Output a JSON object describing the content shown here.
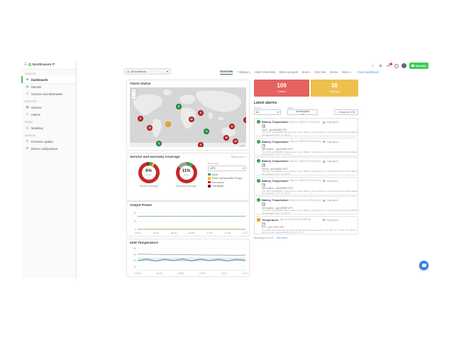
{
  "ui": {
    "menu": "☰",
    "chevron": "▾",
    "chevron_right": "›",
    "search": "⌕",
    "grid": "⊞",
    "download": "↓",
    "check": "✓",
    "warn": "!",
    "location": "◎"
  },
  "header": {
    "icons": [
      {
        "name": "search-icon"
      },
      {
        "name": "apps-grid-icon"
      },
      {
        "name": "notifications-bell-icon",
        "badge": "6"
      },
      {
        "name": "help-icon",
        "glyph": "?"
      },
      {
        "name": "avatar"
      }
    ],
    "brand": {
      "label": "Schneider Electric",
      "short": "Schneider",
      "color": "#3dcd58"
    }
  },
  "sidebar": {
    "logo": "EcoStruxure IT",
    "sections": [
      {
        "label": "Analyze",
        "items": [
          {
            "name": "dashboards",
            "label": "Dashboards",
            "icon": "⊞",
            "active": true
          },
          {
            "name": "reports",
            "label": "Reports",
            "icon": "▤"
          },
          {
            "name": "services-warranties",
            "label": "Services and Warranties",
            "icon": "⛉"
          }
        ]
      },
      {
        "label": "Monitor",
        "items": [
          {
            "name": "devices",
            "label": "Devices",
            "icon": "▣"
          },
          {
            "name": "alarms",
            "label": "Alarms",
            "icon": "⚠"
          }
        ]
      },
      {
        "label": "Model",
        "items": [
          {
            "name": "modeling",
            "label": "Modeling",
            "icon": "◫"
          }
        ]
      },
      {
        "label": "Manage",
        "items": [
          {
            "name": "firmware-update",
            "label": "Firmware update",
            "icon": "⟳"
          },
          {
            "name": "device-configuration",
            "label": "Device configuration",
            "icon": "⚙"
          }
        ]
      }
    ]
  },
  "topbar": {
    "location_label": "All locations",
    "tabs": [
      {
        "label": "Overview",
        "active": true
      },
      {
        "label": "* Galaxy L"
      },
      {
        "label": "Alarm Overview"
      },
      {
        "label": "Bruno Lunardi"
      },
      {
        "label": "Bruno"
      },
      {
        "label": "COV test"
      },
      {
        "label": "Demo"
      },
      {
        "label": "More ∨"
      }
    ],
    "new_dashboard": "+ New dashboard"
  },
  "alarm_status": {
    "title": "Alarm Status",
    "zoom_in": "+",
    "zoom_out": "−",
    "attribution": "Leaflet",
    "markers": [
      {
        "type": "critical",
        "label": "8",
        "x": 9,
        "y": 52
      },
      {
        "type": "critical",
        "label": "19",
        "x": 17,
        "y": 68
      },
      {
        "type": "warning",
        "label": "!",
        "x": 33,
        "y": 62
      },
      {
        "type": "ok",
        "label": "3",
        "x": 42,
        "y": 32
      },
      {
        "type": "critical",
        "label": "43",
        "x": 53,
        "y": 53
      },
      {
        "type": "critical",
        "label": "6",
        "x": 61,
        "y": 43
      },
      {
        "type": "ok",
        "label": "3",
        "x": 66,
        "y": 74
      },
      {
        "type": "critical",
        "label": "41",
        "x": 88,
        "y": 66
      },
      {
        "type": "critical",
        "label": "39",
        "x": 83,
        "y": 85
      },
      {
        "type": "critical",
        "label": "43",
        "x": 91,
        "y": 90
      },
      {
        "type": "ok",
        "label": "2",
        "x": 25,
        "y": 94
      },
      {
        "type": "critical",
        "label": "9",
        "x": 61,
        "y": 96
      },
      {
        "type": "critical",
        "label": "4",
        "x": 100,
        "y": 55
      }
    ]
  },
  "coverage": {
    "title": "Service and warranty coverage",
    "show_more": "Show more ›",
    "filter_label": "Device type",
    "filter_value": "UPS",
    "donuts": [
      {
        "percent": "6%",
        "sub": "Active",
        "caption": "Service coverage",
        "segments": [
          [
            "#43a047",
            6
          ],
          [
            "#f4c20d",
            3
          ],
          [
            "#c62828",
            88
          ],
          [
            "#7a1f2b",
            3
          ]
        ]
      },
      {
        "percent": "11%",
        "sub": "Active",
        "caption": "Warranty coverage",
        "segments": [
          [
            "#43a047",
            11
          ],
          [
            "#c62828",
            74
          ],
          [
            "#9e9e9e",
            15
          ]
        ]
      }
    ],
    "legend": [
      {
        "label": "Active",
        "color": "#43a047"
      },
      {
        "label": "Active, expiring within 90 days",
        "color": "#f4c20d"
      },
      {
        "label": "Not covered",
        "color": "#c62828"
      },
      {
        "label": "Unavailable",
        "color": "#7a1f2b"
      }
    ]
  },
  "alarms_panel": {
    "critical": {
      "value": "109",
      "label": "Critical"
    },
    "warning": {
      "value": "38",
      "label": "Warning"
    },
    "title": "Latest alarms",
    "filters": {
      "severity_label": "Severity",
      "severity_value": "All",
      "status_label": "Status",
      "status_value": "Unassigned"
    },
    "export_label": "Export to CSV",
    "items": [
      {
        "severity": "cleared",
        "title": "Battery Temperature",
        "time": "Sep 14, 2018 6:27 PM (8 m)",
        "device": "Dev5 - apc54365B UPS",
        "status": "Unassigned",
        "description": "The UPS 'apc54365B' Temperature sensor 'Battery Temperature' is now below the threshold 'Battery Temperature' of 27 °C / 81 °F."
      },
      {
        "severity": "cleared",
        "title": "Battery Temperature",
        "time": "Sep 14, 2018 6:13 PM (22 m)",
        "device": "4th location - apc530681 UPS",
        "status": "Unassigned",
        "description": "The UPS 'apc530681' Temperature sensor 'Battery Temperature' is now below the threshold 'Battery Temperature' of 27 °C / 81 °F."
      },
      {
        "severity": "cleared",
        "title": "Battery Temperature",
        "time": "Sep 14, 2018 6:13 PM (22 m)",
        "device": "Dev15 - apc530692 UPS",
        "status": "Unassigned",
        "description": "The UPS 'apc530692' Temperature sensor 'Battery Temperature' is now below the threshold 'Battery Temperature' of 27 °C / 81 °F."
      },
      {
        "severity": "cleared",
        "title": "Battery Temperature",
        "time": "Sep 14, 2018 6:13 PM (23 m)",
        "device": "4th location - apc530694 UPS",
        "status": "Unassigned",
        "description": "The UPS 'apc530694' Temperature sensor 'Battery Temperature' is now below the threshold 'Battery Temperature' of 27 °C / 81 °F."
      },
      {
        "severity": "cleared",
        "title": "Battery Temperature",
        "time": "Sep 14, 2018 6:14 PM (22 m)",
        "device": "4th location - apc530685 UPS",
        "status": "Unassigned",
        "description": "The UPS 'apc530685' Temperature sensor 'Battery Temperature' is now below the threshold 'Battery Temperature' of 27 °C / 81 °F."
      },
      {
        "severity": "warning",
        "title": "Temperature",
        "time": "Sep 14, 2018 6:00 PM (35 m)",
        "device": "NY1 - APC UPS UPS",
        "status": "Unassigned",
        "description": "The UPS 'APC UPS' Temperature sensor 'Battery Temperature' at 24.000 °C / 75.200 °F is above the threshold 'Temperature' of 24 °C / 75 °F."
      }
    ],
    "footer": "Showing 6 of 147",
    "see_more": "See more"
  },
  "chart_data": [
    {
      "type": "line",
      "title": "Output Power",
      "x": [
        "16:20",
        "16:30",
        "16:40",
        "16:50",
        "17:00",
        "17:10",
        "17:20"
      ],
      "ylim": [
        0,
        2400
      ],
      "yticks": [
        [
          "2k",
          2000
        ],
        [
          "1k",
          1000
        ],
        [
          "0",
          0
        ]
      ],
      "grid": true,
      "legend": "none",
      "series": [
        {
          "name": "line-1",
          "color": "#7fa8c4",
          "values": [
            1590,
            1600,
            1595,
            1600,
            1600,
            1605,
            1600,
            1595,
            1600,
            1600,
            1595,
            1600,
            1600
          ]
        },
        {
          "name": "line-2",
          "color": "#84b864",
          "values": [
            25,
            25,
            25,
            25,
            25,
            25,
            25,
            25,
            25,
            25,
            25,
            25,
            25
          ]
        }
      ]
    },
    {
      "type": "line",
      "title": "Inlet Temperature",
      "x": [
        "16:30",
        "16:40",
        "16:50",
        "17:00",
        "17:10",
        "17:20"
      ],
      "ylim": [
        5,
        42
      ],
      "yticks": [
        [
          "40",
          40
        ],
        [
          "30",
          30
        ],
        [
          "20",
          20
        ],
        [
          "10",
          10
        ]
      ],
      "grid": true,
      "legend": "none",
      "series": [
        {
          "name": "line-1",
          "color": "#ababab",
          "values": [
            31,
            30.6,
            30.2,
            30,
            29.8,
            30,
            29.6,
            29.4,
            29.2,
            29.4,
            29,
            28.8,
            29
          ]
        },
        {
          "name": "line-2",
          "color": "#bcdcea",
          "values": [
            24,
            23.8,
            24,
            23.6,
            24,
            23.8,
            24,
            23.6,
            24,
            23.8,
            24,
            23.6,
            23.8
          ]
        },
        {
          "name": "line-3",
          "color": "#5ba3bd",
          "values": [
            20.5,
            22.8,
            20.2,
            22.6,
            20.8,
            23,
            20.4,
            22.8,
            20.6,
            22.6,
            20.4,
            22.4,
            21
          ]
        },
        {
          "name": "line-4",
          "color": "#87a9b6",
          "values": [
            19.8,
            21.4,
            19.4,
            21.6,
            19.8,
            21.4,
            19.6,
            21.6,
            19.8,
            21.2,
            19.6,
            21.2,
            19.8
          ]
        }
      ]
    }
  ]
}
